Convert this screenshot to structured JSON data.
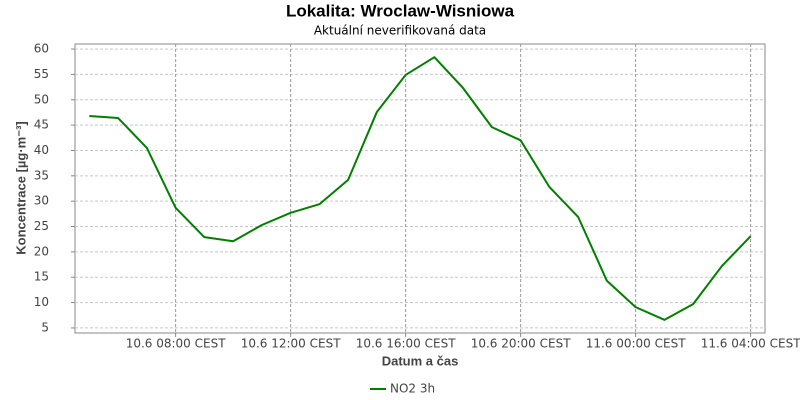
{
  "chart_data": {
    "type": "line",
    "title": "Lokalita: Wroclaw-Wisniowa",
    "subtitle": "Aktuální neverifikovaná data",
    "x_label": "Datum a čas",
    "y_label": "Koncentrace [µg·m⁻³]",
    "x": [
      5,
      6,
      7,
      8,
      9,
      10,
      11,
      12,
      13,
      14,
      15,
      16,
      17,
      18,
      19,
      20,
      21,
      22,
      23,
      24,
      25,
      26,
      27,
      28
    ],
    "series": [
      {
        "name": "NO2 3h",
        "color": "#008000",
        "values": [
          46.8,
          46.4,
          40.5,
          28.7,
          22.9,
          22.1,
          25.3,
          27.7,
          29.4,
          34.2,
          47.6,
          54.9,
          58.4,
          52.3,
          44.6,
          42.0,
          32.8,
          26.9,
          14.3,
          9.1,
          6.6,
          9.7,
          17.2,
          23.1
        ]
      }
    ],
    "xlim": [
      4.5,
      28.5
    ],
    "xticks": [
      {
        "value": 8,
        "label": "10.6 08:00 CEST"
      },
      {
        "value": 12,
        "label": "10.6 12:00 CEST"
      },
      {
        "value": 16,
        "label": "10.6 16:00 CEST"
      },
      {
        "value": 20,
        "label": "10.6 20:00 CEST"
      },
      {
        "value": 24,
        "label": "11.6 00:00 CEST"
      },
      {
        "value": 28,
        "label": "11.6 04:00 CEST"
      }
    ],
    "ylim": [
      4,
      61
    ],
    "yticks": [
      5,
      10,
      15,
      20,
      25,
      30,
      35,
      40,
      45,
      50,
      55,
      60
    ],
    "grid": true,
    "legend": "bottom"
  }
}
